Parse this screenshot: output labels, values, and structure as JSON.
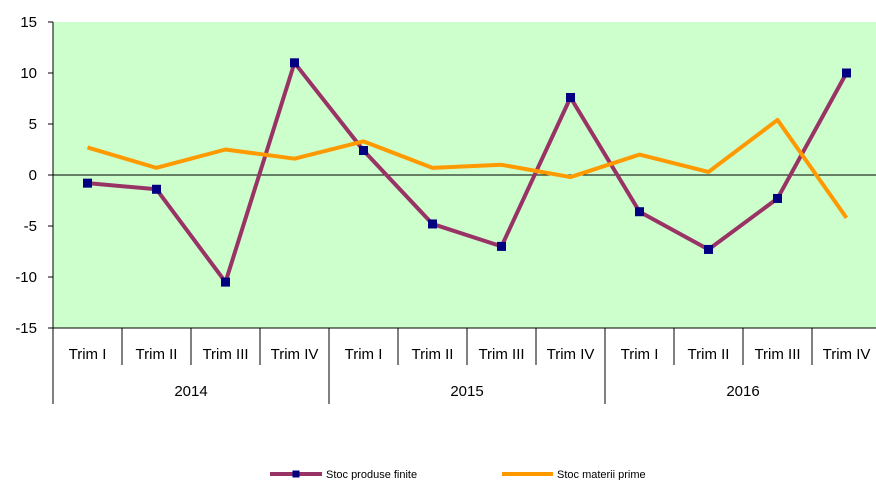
{
  "chart_data": {
    "type": "line",
    "title": "",
    "xlabel": "",
    "ylabel": "",
    "ylim": [
      -15,
      15
    ],
    "yticks": [
      15,
      10,
      5,
      0,
      -5,
      -10,
      -15
    ],
    "grid": false,
    "plot_background": "#ccffcc",
    "legend_position": "bottom",
    "categories": [
      "Trim I",
      "Trim II",
      "Trim III",
      "Trim IV",
      "Trim I",
      "Trim II",
      "Trim III",
      "Trim IV",
      "Trim I",
      "Trim II",
      "Trim III",
      "Trim IV"
    ],
    "groups": [
      {
        "label": "2014",
        "span": 4
      },
      {
        "label": "2015",
        "span": 4
      },
      {
        "label": "2016",
        "span": 4
      }
    ],
    "series": [
      {
        "name": "Stoc produse finite",
        "color": "#993366",
        "marker_color": "#000080",
        "marker": "square",
        "values": [
          -0.8,
          -1.4,
          -10.5,
          11.0,
          2.4,
          -4.8,
          -7.0,
          7.6,
          -3.6,
          -7.3,
          -2.3,
          10.0
        ]
      },
      {
        "name": "Stoc materii prime",
        "color": "#ff9900",
        "marker": "none",
        "values": [
          2.7,
          0.7,
          2.5,
          1.6,
          3.3,
          0.7,
          1.0,
          -0.2,
          2.0,
          0.3,
          5.4,
          -4.2
        ]
      }
    ]
  }
}
